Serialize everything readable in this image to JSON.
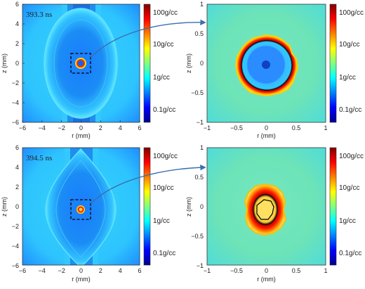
{
  "chart_data": [
    {
      "type": "heatmap",
      "stamp": "393.3 ns",
      "xlabel": "r (mm)",
      "ylabel": "z (mm)",
      "xlim": [
        -6,
        6
      ],
      "ylim": [
        -6,
        6
      ],
      "xticks": [
        "−6",
        "−4",
        "−2",
        "0",
        "2",
        "4",
        "6"
      ],
      "yticks": [
        "6",
        "4",
        "2",
        "0",
        "−2",
        "−4",
        "−6"
      ],
      "colorbar": {
        "scale": "log",
        "range_gcc": [
          0.03,
          200
        ],
        "ticks": [
          "100g/cc",
          "10g/cc",
          "1g/cc",
          "0.1g/cc"
        ],
        "tick_values": [
          100,
          10,
          1,
          0.1
        ]
      },
      "zoom_box_mm": [
        -1,
        1
      ]
    },
    {
      "type": "heatmap",
      "xlabel": "r (mm)",
      "ylabel": "z (mm)",
      "xlim": [
        -1,
        1
      ],
      "ylim": [
        -1,
        1
      ],
      "xticks": [
        "−1",
        "−0.5",
        "0",
        "0.5",
        "1"
      ],
      "yticks": [
        "1",
        "0.5",
        "0",
        "−0.5",
        "−1"
      ],
      "colorbar": {
        "scale": "log",
        "range_gcc": [
          0.03,
          200
        ],
        "ticks": [
          "100g/cc",
          "10g/cc",
          "1g/cc",
          "0.1g/cc"
        ],
        "tick_values": [
          100,
          10,
          1,
          0.1
        ]
      }
    },
    {
      "type": "heatmap",
      "stamp": "394.5 ns",
      "xlabel": "r (mm)",
      "ylabel": "z (mm)",
      "xlim": [
        -6,
        6
      ],
      "ylim": [
        -6,
        6
      ],
      "xticks": [
        "−6",
        "−4",
        "−2",
        "0",
        "2",
        "4",
        "6"
      ],
      "yticks": [
        "6",
        "4",
        "2",
        "0",
        "−2",
        "−4",
        "−6"
      ],
      "colorbar": {
        "scale": "log",
        "range_gcc": [
          0.03,
          200
        ],
        "ticks": [
          "100g/cc",
          "10g/cc",
          "1g/cc",
          "0.1g/cc"
        ],
        "tick_values": [
          100,
          10,
          1,
          0.1
        ]
      },
      "zoom_box_mm": [
        -1,
        1
      ]
    },
    {
      "type": "heatmap",
      "xlabel": "r (mm)",
      "ylabel": "z (mm)",
      "xlim": [
        -1,
        1
      ],
      "ylim": [
        -1,
        1
      ],
      "xticks": [
        "−1",
        "−0.5",
        "0",
        "0.5",
        "1"
      ],
      "yticks": [
        "1",
        "0.5",
        "0",
        "−0.5",
        "−1"
      ],
      "colorbar": {
        "scale": "log",
        "range_gcc": [
          0.03,
          200
        ],
        "ticks": [
          "100g/cc",
          "10g/cc",
          "1g/cc",
          "0.1g/cc"
        ],
        "tick_values": [
          100,
          10,
          1,
          0.1
        ]
      }
    }
  ],
  "colors": {
    "colormap": [
      "#00008f",
      "#0000ff",
      "#0080ff",
      "#00ffff",
      "#80ff80",
      "#ffff00",
      "#ff8000",
      "#ff0000",
      "#800000"
    ],
    "background_cyan": "#3fd8f0",
    "zoom_arrow": "#3a6fb0",
    "zoom_box": "#000000"
  }
}
